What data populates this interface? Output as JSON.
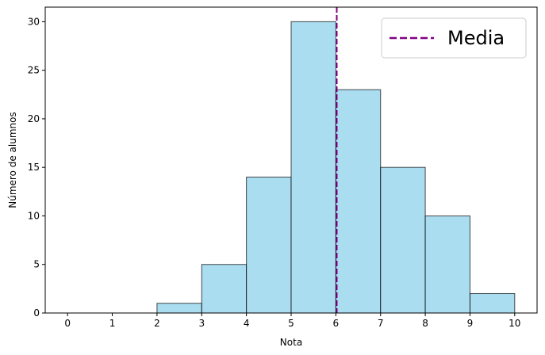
{
  "chart_data": {
    "type": "histogram",
    "bins": [
      0,
      1,
      2,
      3,
      4,
      5,
      6,
      7,
      8,
      9,
      10
    ],
    "values": [
      0,
      0,
      1,
      5,
      14,
      30,
      23,
      15,
      10,
      2
    ],
    "color": "#87ceeb",
    "edgecolor": "#000000",
    "xlabel": "Nota",
    "ylabel": "Número de alumnos",
    "xlim": [
      -0.5,
      10.5
    ],
    "xticks": [
      0,
      1,
      2,
      3,
      4,
      5,
      6,
      7,
      8,
      9,
      10
    ],
    "ylim": [
      0,
      31.5
    ],
    "yticks": [
      0,
      5,
      10,
      15,
      20,
      25,
      30
    ],
    "mean_line": {
      "name": "Media",
      "value": 6.02,
      "color": "#800080"
    },
    "legend": "upper right"
  }
}
